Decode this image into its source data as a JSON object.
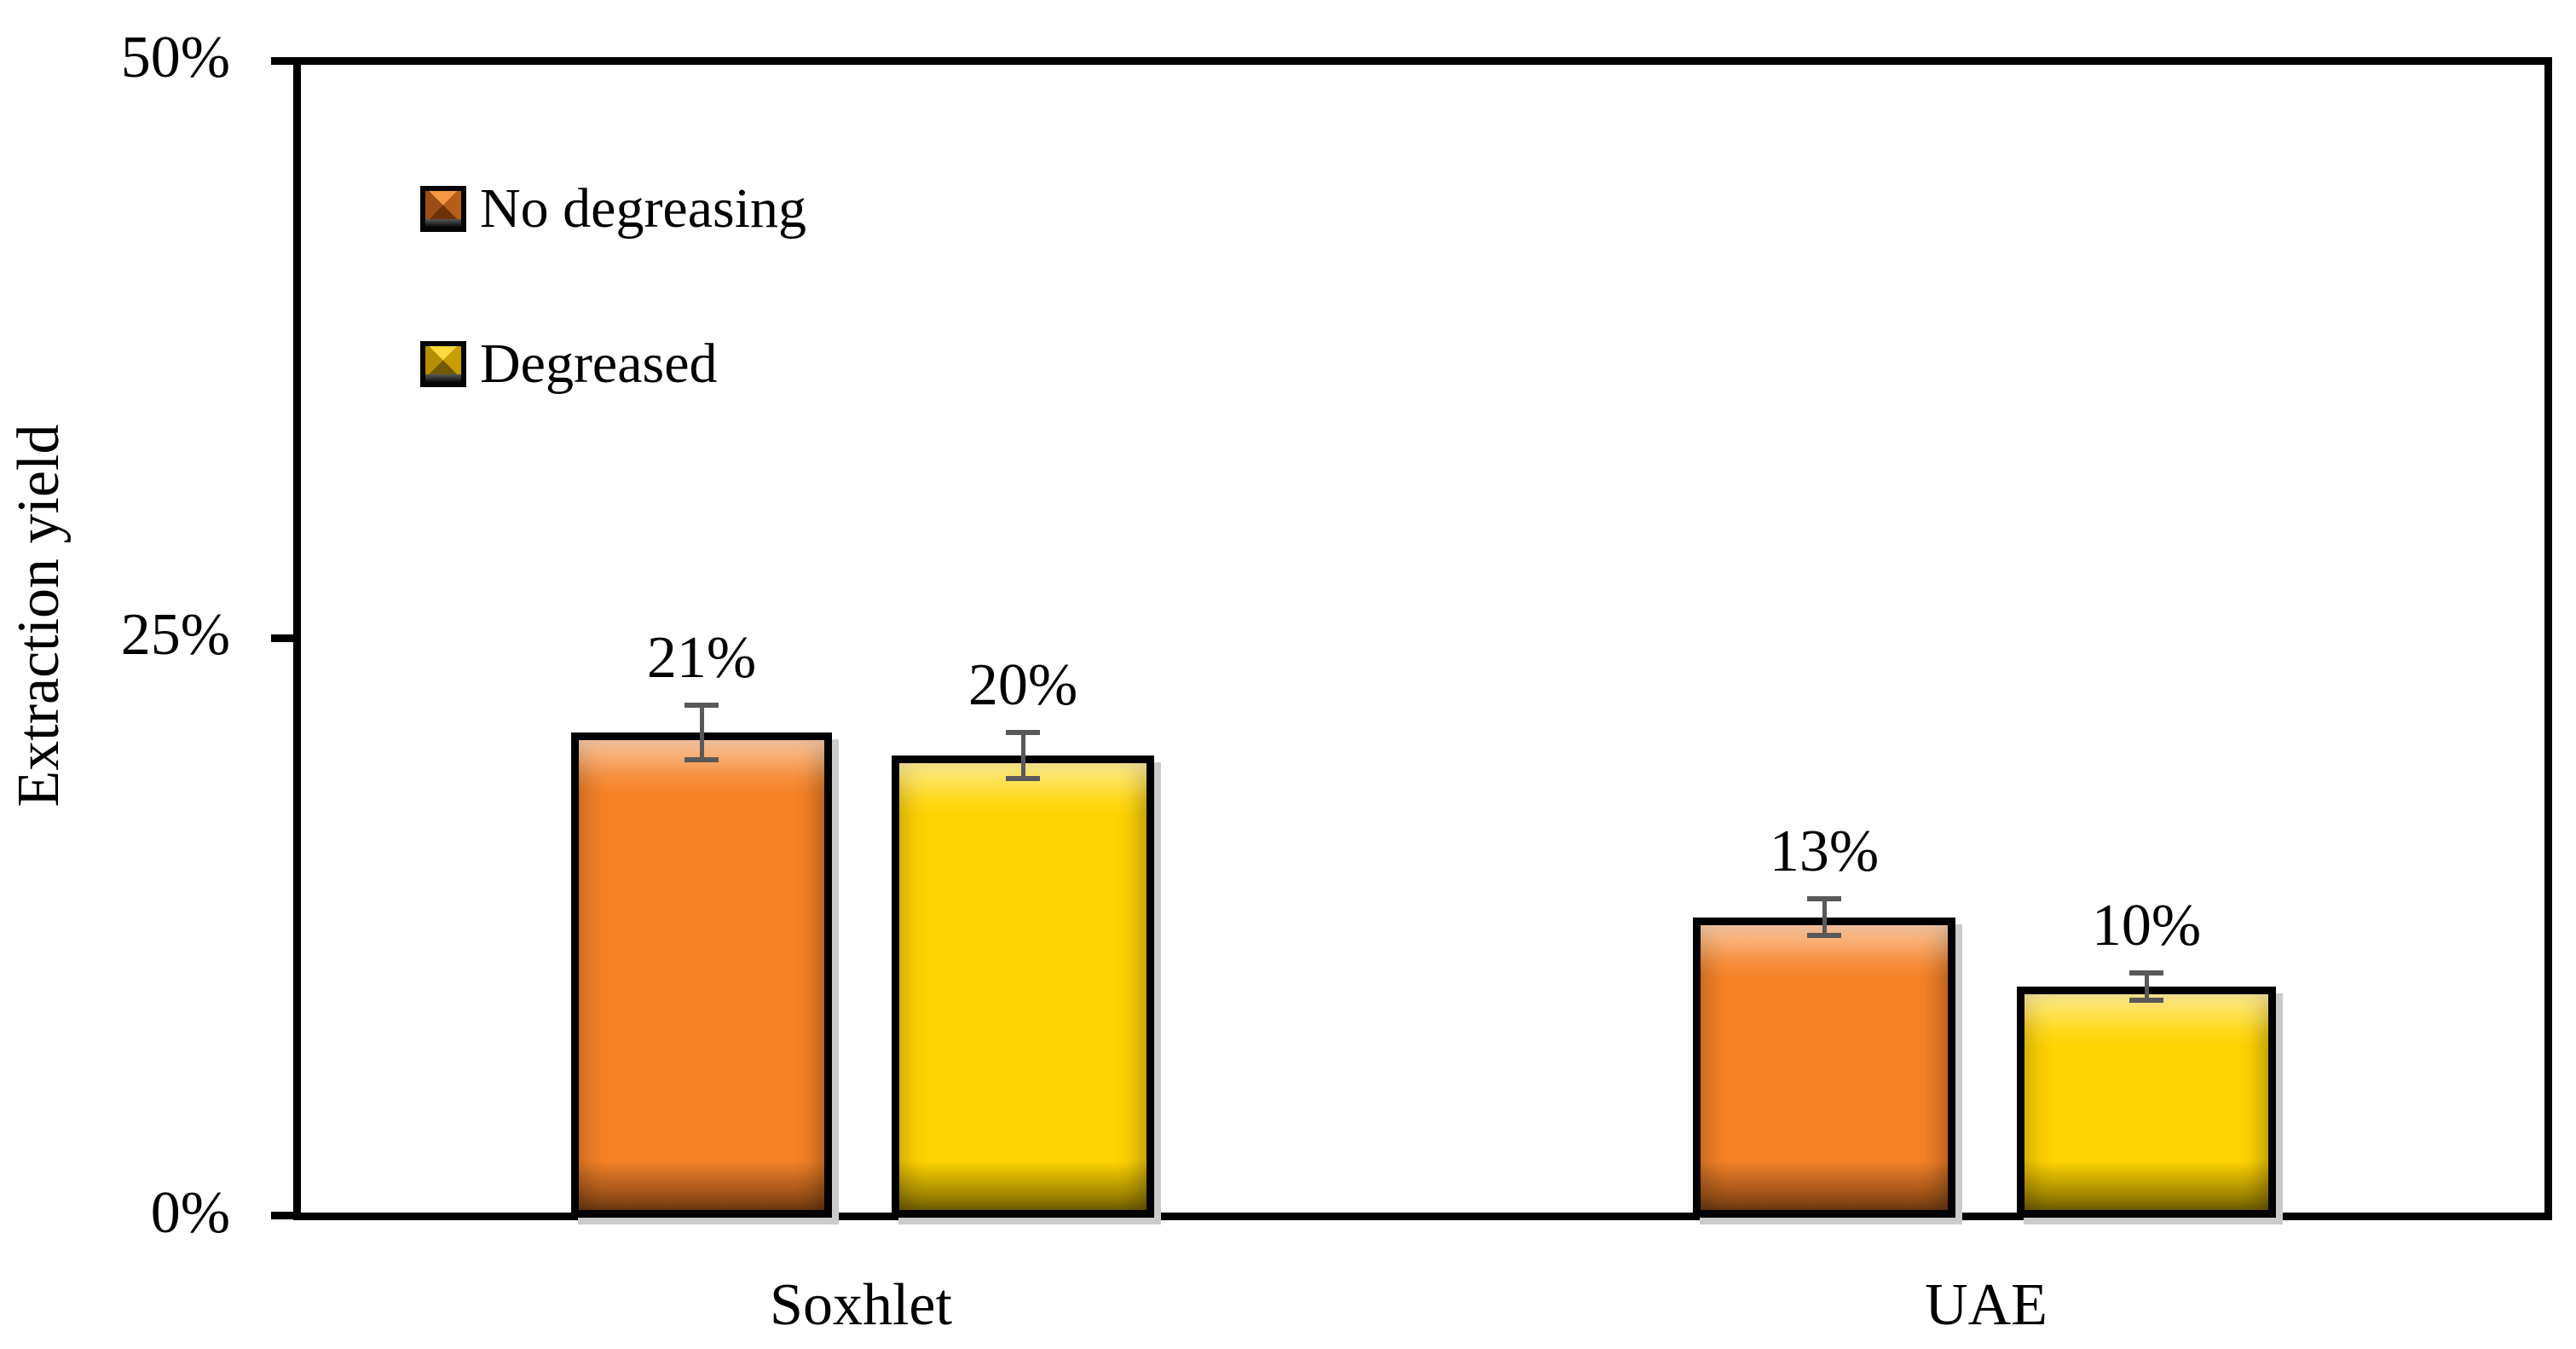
{
  "chart_data": {
    "type": "bar",
    "title": "",
    "ylabel": "Extraction yield",
    "categories": [
      "Soxhlet",
      "UAE"
    ],
    "series": [
      {
        "name": "No degreasing",
        "color": "#F58227",
        "values": [
          21,
          13
        ],
        "labels": [
          "21%",
          "13%"
        ],
        "errors": [
          1.3,
          0.9
        ]
      },
      {
        "name": "Degreased",
        "color": "#FFD400",
        "values": [
          20,
          10
        ],
        "labels": [
          "20%",
          "10%"
        ],
        "errors": [
          1.1,
          0.7
        ]
      }
    ],
    "ylim": [
      0,
      50
    ],
    "yticks": [
      "0%",
      "25%",
      "50%"
    ],
    "grid": false,
    "legend_position": "top-left-inside",
    "error_bar_color": "#595959",
    "bar_outline_color": "#000000"
  }
}
